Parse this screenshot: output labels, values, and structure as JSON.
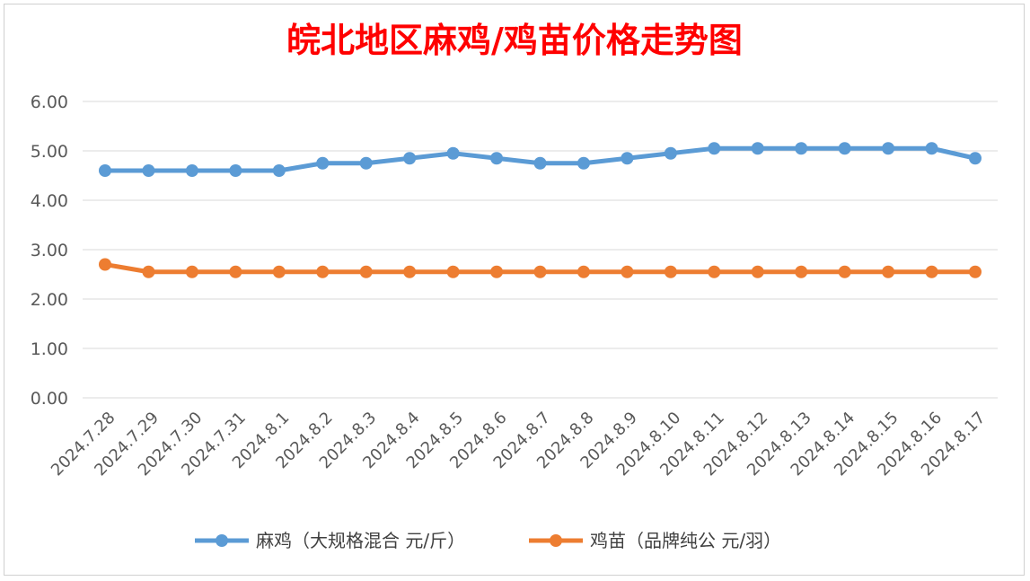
{
  "chart_data": {
    "type": "line",
    "title": "皖北地区麻鸡/鸡苗价格走势图",
    "xlabel": "",
    "ylabel": "",
    "ylim": [
      0,
      6
    ],
    "yticks": [
      "0.00",
      "1.00",
      "2.00",
      "3.00",
      "4.00",
      "5.00",
      "6.00"
    ],
    "grid": true,
    "legend_position": "bottom",
    "categories": [
      "2024.7.28",
      "2024.7.29",
      "2024.7.30",
      "2024.7.31",
      "2024.8.1",
      "2024.8.2",
      "2024.8.3",
      "2024.8.4",
      "2024.8.5",
      "2024.8.6",
      "2024.8.7",
      "2024.8.8",
      "2024.8.9",
      "2024.8.10",
      "2024.8.11",
      "2024.8.12",
      "2024.8.13",
      "2024.8.14",
      "2024.8.15",
      "2024.8.16",
      "2024.8.17"
    ],
    "series": [
      {
        "name": "麻鸡（大规格混合 元/斤）",
        "color": "#5b9bd5",
        "values": [
          4.6,
          4.6,
          4.6,
          4.6,
          4.6,
          4.75,
          4.75,
          4.85,
          4.95,
          4.85,
          4.75,
          4.75,
          4.85,
          4.95,
          5.05,
          5.05,
          5.05,
          5.05,
          5.05,
          5.05,
          4.85
        ]
      },
      {
        "name": "鸡苗（品牌纯公 元/羽）",
        "color": "#ed7d31",
        "values": [
          2.7,
          2.55,
          2.55,
          2.55,
          2.55,
          2.55,
          2.55,
          2.55,
          2.55,
          2.55,
          2.55,
          2.55,
          2.55,
          2.55,
          2.55,
          2.55,
          2.55,
          2.55,
          2.55,
          2.55,
          2.55
        ]
      }
    ]
  }
}
